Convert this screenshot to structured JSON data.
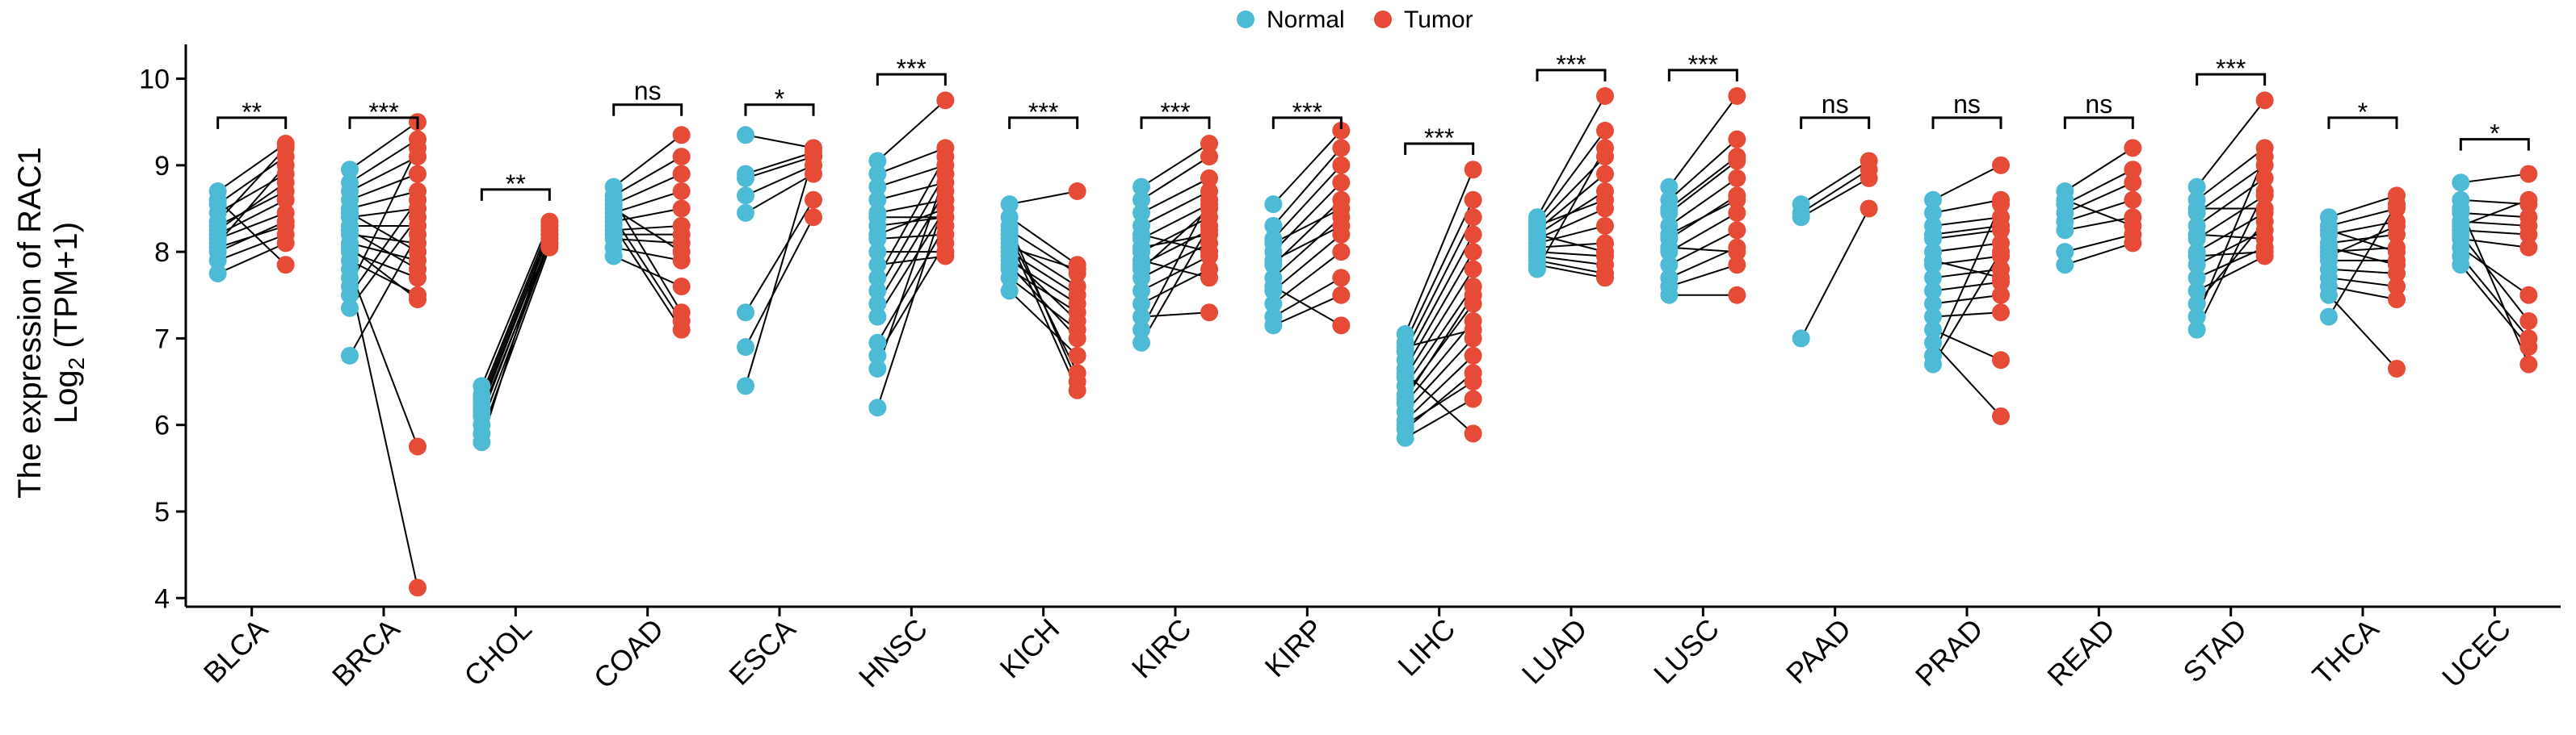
{
  "chart_data": {
    "type": "scatter",
    "subtype": "paired-dot",
    "ylabel_line1": "The expression of RAC1",
    "ylabel_line2_prefix": "Log",
    "ylabel_line2_sub": "2",
    "ylabel_line2_suffix": " (TPM+1)",
    "ylim": [
      3.9,
      10.35
    ],
    "yticks": [
      4,
      5,
      6,
      7,
      8,
      9,
      10
    ],
    "legend": {
      "placement": "top-center",
      "entries": [
        {
          "name": "Normal",
          "color": "#4DBBD5"
        },
        {
          "name": "Tumor",
          "color": "#E64B35"
        }
      ]
    },
    "categories": [
      "BLCA",
      "BRCA",
      "CHOL",
      "COAD",
      "ESCA",
      "HNSC",
      "KICH",
      "KIRC",
      "KIRP",
      "LIHC",
      "LUAD",
      "LUSC",
      "PAAD",
      "PRAD",
      "READ",
      "STAD",
      "THCA",
      "UCEC"
    ],
    "significance": [
      "**",
      "***",
      "**",
      "ns",
      "*",
      "***",
      "***",
      "***",
      "***",
      "***",
      "***",
      "***",
      "ns",
      "ns",
      "ns",
      "***",
      "*",
      "*"
    ],
    "bracket_y": [
      9.55,
      9.55,
      8.72,
      9.7,
      9.7,
      10.05,
      9.55,
      9.55,
      9.55,
      9.25,
      10.1,
      10.1,
      9.55,
      9.55,
      9.55,
      10.05,
      9.55,
      9.3
    ],
    "pairs": [
      {
        "normal": [
          8.7,
          8.55,
          8.45,
          8.3,
          8.2,
          8.1,
          8.0,
          7.9,
          7.75,
          8.6,
          8.35,
          8.25,
          8.05,
          8.15
        ],
        "tumor": [
          9.25,
          9.1,
          8.9,
          8.7,
          8.6,
          9.0,
          8.35,
          8.2,
          8.1,
          7.85,
          9.2,
          8.8,
          8.3,
          8.45
        ]
      },
      {
        "normal": [
          8.95,
          8.8,
          8.7,
          8.6,
          8.5,
          8.4,
          8.3,
          8.2,
          8.1,
          8.0,
          7.9,
          7.8,
          7.7,
          7.6,
          7.5,
          7.35,
          6.8,
          8.45,
          8.25,
          8.05
        ],
        "tumor": [
          9.5,
          9.3,
          9.1,
          8.9,
          8.7,
          8.5,
          8.3,
          8.1,
          7.9,
          7.7,
          7.5,
          5.75,
          4.12,
          9.2,
          8.6,
          8.4,
          8.2,
          8.0,
          7.8,
          7.45
        ]
      },
      {
        "normal": [
          6.45,
          6.35,
          6.3,
          6.2,
          6.1,
          6.0,
          5.9,
          5.8,
          6.25,
          6.15
        ],
        "tumor": [
          8.35,
          8.3,
          8.25,
          8.2,
          8.15,
          8.1,
          8.05,
          8.3,
          8.2,
          8.1
        ]
      },
      {
        "normal": [
          8.75,
          8.65,
          8.55,
          8.45,
          8.35,
          8.25,
          8.15,
          8.05,
          7.95,
          8.4,
          8.3,
          8.2,
          8.5,
          8.6
        ],
        "tumor": [
          9.35,
          9.1,
          8.9,
          8.7,
          8.5,
          8.3,
          8.1,
          7.9,
          7.6,
          7.2,
          7.1,
          8.2,
          8.0,
          7.3
        ]
      },
      {
        "normal": [
          9.35,
          8.85,
          8.65,
          8.45,
          7.3,
          6.9,
          6.45,
          8.9
        ],
        "tumor": [
          9.2,
          9.1,
          9.0,
          8.9,
          8.6,
          8.4,
          9.1,
          9.15
        ]
      },
      {
        "normal": [
          9.05,
          8.9,
          8.75,
          8.6,
          8.45,
          8.3,
          8.15,
          8.0,
          7.85,
          7.7,
          7.55,
          7.4,
          7.25,
          6.95,
          6.8,
          6.65,
          6.2,
          8.4,
          8.2
        ],
        "tumor": [
          9.75,
          9.2,
          9.0,
          8.8,
          8.6,
          8.4,
          8.2,
          8.0,
          7.95,
          9.1,
          8.9,
          8.7,
          8.5,
          8.3,
          8.1,
          8.9,
          8.6,
          8.4,
          8.5
        ]
      },
      {
        "normal": [
          8.55,
          8.4,
          8.25,
          8.1,
          8.0,
          7.9,
          7.8,
          7.7,
          7.55,
          8.3,
          8.15,
          7.95,
          7.85,
          8.2,
          8.05
        ],
        "tumor": [
          8.7,
          7.85,
          7.75,
          7.6,
          7.5,
          7.4,
          7.3,
          7.1,
          6.8,
          6.5,
          6.4,
          7.2,
          7.0,
          6.6,
          7.8
        ]
      },
      {
        "normal": [
          8.75,
          8.6,
          8.45,
          8.3,
          8.15,
          8.0,
          7.85,
          7.7,
          7.55,
          7.4,
          7.25,
          7.1,
          6.95,
          8.2,
          8.05,
          7.9,
          7.8
        ],
        "tumor": [
          9.25,
          9.1,
          8.85,
          8.7,
          8.55,
          8.4,
          8.25,
          8.1,
          7.95,
          7.8,
          7.3,
          8.6,
          8.3,
          8.0,
          8.2,
          7.7,
          8.5
        ]
      },
      {
        "normal": [
          8.55,
          8.3,
          8.15,
          8.0,
          7.85,
          7.7,
          7.55,
          7.4,
          7.25,
          7.15,
          7.6,
          7.9,
          8.1
        ],
        "tumor": [
          9.4,
          9.2,
          9.0,
          8.8,
          8.6,
          8.4,
          8.2,
          8.0,
          7.7,
          7.5,
          7.15,
          8.3,
          8.5
        ]
      },
      {
        "normal": [
          7.05,
          6.95,
          6.85,
          6.75,
          6.65,
          6.55,
          6.45,
          6.35,
          6.25,
          6.15,
          6.05,
          5.95,
          5.85,
          6.6,
          6.3,
          6.9,
          6.0
        ],
        "tumor": [
          8.95,
          8.6,
          8.4,
          8.2,
          8.0,
          7.8,
          7.6,
          7.4,
          7.2,
          7.0,
          6.8,
          6.6,
          6.3,
          5.9,
          7.5,
          7.1,
          6.5
        ]
      },
      {
        "normal": [
          8.4,
          8.35,
          8.3,
          8.25,
          8.2,
          8.15,
          8.1,
          8.05,
          8.0,
          7.95,
          7.9,
          7.85,
          7.8,
          8.3,
          8.2
        ],
        "tumor": [
          9.8,
          9.4,
          9.1,
          8.9,
          8.7,
          8.5,
          8.3,
          8.1,
          7.95,
          7.85,
          7.75,
          7.7,
          9.2,
          8.6,
          8.0
        ]
      },
      {
        "normal": [
          8.75,
          8.6,
          8.45,
          8.3,
          8.15,
          8.0,
          7.85,
          7.7,
          7.6,
          7.5,
          8.5,
          8.2,
          8.05
        ],
        "tumor": [
          9.8,
          9.3,
          9.05,
          8.85,
          8.65,
          8.45,
          8.25,
          8.05,
          7.85,
          7.5,
          9.1,
          8.6,
          8.0
        ]
      },
      {
        "normal": [
          8.55,
          8.45,
          8.4,
          7.0
        ],
        "tumor": [
          9.05,
          8.95,
          8.85,
          8.5
        ]
      },
      {
        "normal": [
          8.6,
          8.45,
          8.3,
          8.15,
          8.0,
          7.85,
          7.7,
          7.55,
          7.4,
          7.25,
          7.1,
          6.95,
          6.8,
          6.7,
          8.2,
          7.9
        ],
        "tumor": [
          9.0,
          8.6,
          8.4,
          8.25,
          8.1,
          7.95,
          7.8,
          7.65,
          7.5,
          7.3,
          6.75,
          6.1,
          8.55,
          8.0,
          8.3,
          7.7
        ]
      },
      {
        "normal": [
          8.7,
          8.55,
          8.45,
          8.35,
          8.25,
          8.0,
          7.85,
          8.6
        ],
        "tumor": [
          9.2,
          8.95,
          8.8,
          8.6,
          8.4,
          8.2,
          8.1,
          8.3
        ]
      },
      {
        "normal": [
          8.75,
          8.6,
          8.45,
          8.3,
          8.15,
          8.0,
          7.85,
          7.7,
          7.55,
          7.4,
          7.25,
          7.1,
          8.5,
          8.2,
          7.95
        ],
        "tumor": [
          9.75,
          9.2,
          9.0,
          8.85,
          8.65,
          8.45,
          8.25,
          8.05,
          7.95,
          8.35,
          9.1,
          8.7,
          8.5,
          8.15,
          8.0
        ]
      },
      {
        "normal": [
          8.4,
          8.3,
          8.2,
          8.1,
          8.0,
          7.9,
          7.8,
          7.7,
          7.6,
          7.5,
          7.25,
          8.25,
          8.05,
          7.95
        ],
        "tumor": [
          8.65,
          8.5,
          8.35,
          8.2,
          8.05,
          7.9,
          7.75,
          7.6,
          7.45,
          6.65,
          8.55,
          8.0,
          7.85,
          8.3
        ]
      },
      {
        "normal": [
          8.8,
          8.6,
          8.45,
          8.35,
          8.25,
          8.15,
          8.05,
          7.95,
          7.85,
          8.5,
          8.3,
          8.2
        ],
        "tumor": [
          8.9,
          8.55,
          8.4,
          8.3,
          8.2,
          8.05,
          7.5,
          7.0,
          6.9,
          6.7,
          8.6,
          7.2
        ]
      }
    ]
  }
}
